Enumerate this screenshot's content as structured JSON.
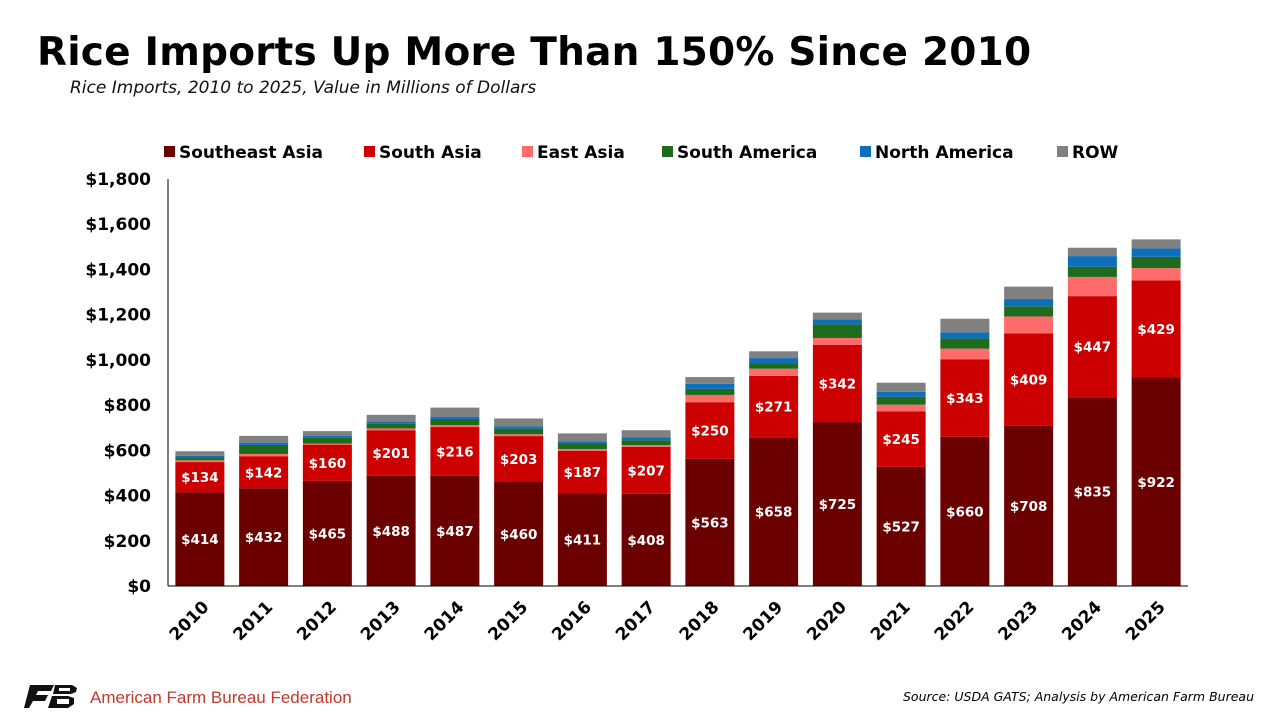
{
  "header": {
    "title": "Rice Imports Up More Than 150% Since 2010",
    "subtitle": "Rice Imports, 2010 to 2025, Value in Millions of Dollars"
  },
  "footer": {
    "org_name": "American Farm Bureau Federation",
    "source": "Source: USDA GATS; Analysis by American Farm Bureau"
  },
  "chart_data": {
    "type": "bar",
    "stacked": true,
    "title": "Rice Imports Up More Than 150% Since 2010",
    "subtitle": "Rice Imports, 2010 to 2025, Value in Millions of Dollars",
    "xlabel": "",
    "ylabel": "",
    "ylim": [
      0,
      1800
    ],
    "yticks": [
      0,
      200,
      400,
      600,
      800,
      1000,
      1200,
      1400,
      1600,
      1800
    ],
    "ytick_labels": [
      "$0",
      "$200",
      "$400",
      "$600",
      "$800",
      "$1,000",
      "$1,200",
      "$1,400",
      "$1,600",
      "$1,800"
    ],
    "grid": false,
    "legend_position": "top",
    "categories": [
      "2010",
      "2011",
      "2012",
      "2013",
      "2014",
      "2015",
      "2016",
      "2017",
      "2018",
      "2019",
      "2020",
      "2021",
      "2022",
      "2023",
      "2024",
      "2025"
    ],
    "series": [
      {
        "name": "Southeast Asia",
        "color": "#6b0000",
        "show_labels": true,
        "values": [
          414,
          432,
          465,
          488,
          487,
          460,
          411,
          408,
          563,
          658,
          725,
          527,
          660,
          708,
          835,
          922
        ]
      },
      {
        "name": "South Asia",
        "color": "#cc0000",
        "show_labels": true,
        "values": [
          134,
          142,
          160,
          201,
          216,
          203,
          187,
          207,
          250,
          271,
          342,
          245,
          343,
          409,
          447,
          429
        ]
      },
      {
        "name": "East Asia",
        "color": "#ff6b6b",
        "show_labels": false,
        "values": [
          8,
          10,
          5,
          8,
          8,
          8,
          8,
          8,
          32,
          32,
          30,
          30,
          47,
          75,
          85,
          55
        ]
      },
      {
        "name": "South America",
        "color": "#1e6b1e",
        "show_labels": false,
        "values": [
          10,
          40,
          25,
          20,
          28,
          25,
          22,
          22,
          27,
          25,
          60,
          35,
          45,
          45,
          45,
          50
        ]
      },
      {
        "name": "North America",
        "color": "#0d6ebc",
        "show_labels": false,
        "values": [
          10,
          10,
          10,
          10,
          10,
          10,
          12,
          12,
          22,
          22,
          22,
          22,
          27,
          32,
          47,
          37
        ]
      },
      {
        "name": "ROW",
        "color": "#808080",
        "show_labels": false,
        "values": [
          20,
          30,
          20,
          30,
          40,
          35,
          35,
          32,
          30,
          30,
          30,
          40,
          60,
          55,
          37,
          40
        ]
      }
    ],
    "data_label_prefix": "$"
  }
}
